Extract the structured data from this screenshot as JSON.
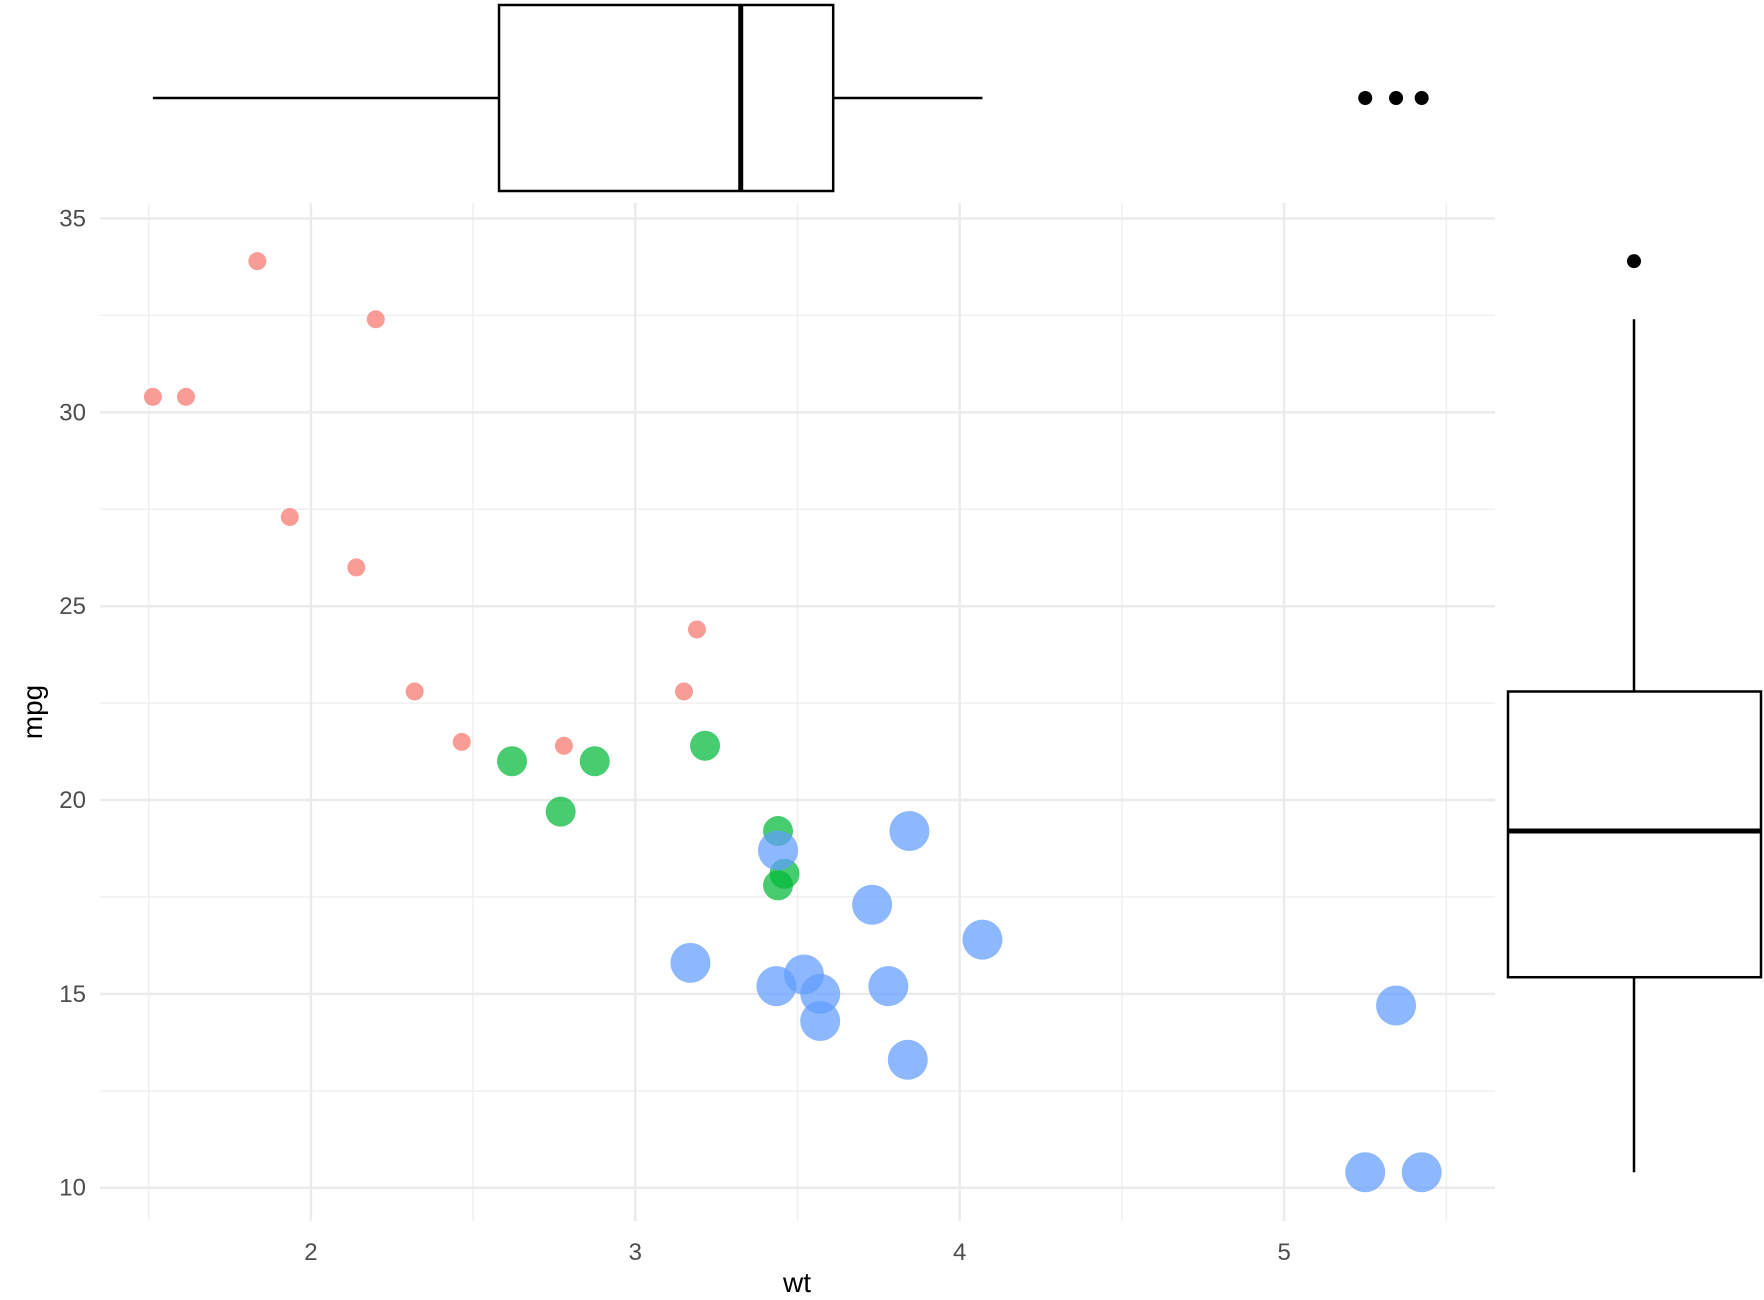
{
  "chart_data": {
    "type": "scatter",
    "title": "",
    "xlabel": "wt",
    "ylabel": "mpg",
    "xlim": [
      1.35,
      5.65
    ],
    "ylim": [
      9.4,
      35.4
    ],
    "x_ticks": [
      2,
      3,
      4,
      5
    ],
    "y_ticks": [
      10,
      15,
      20,
      25,
      30,
      35
    ],
    "grid": true,
    "legend": "none",
    "series": [
      {
        "color": "#F8766D",
        "points": [
          {
            "x": 1.513,
            "y": 30.4
          },
          {
            "x": 1.615,
            "y": 30.4
          },
          {
            "x": 1.835,
            "y": 33.9
          },
          {
            "x": 1.935,
            "y": 27.3
          },
          {
            "x": 2.14,
            "y": 26.0
          },
          {
            "x": 2.2,
            "y": 32.4
          },
          {
            "x": 2.32,
            "y": 22.8
          },
          {
            "x": 2.465,
            "y": 21.5
          },
          {
            "x": 2.78,
            "y": 21.4
          },
          {
            "x": 3.15,
            "y": 22.8
          },
          {
            "x": 3.19,
            "y": 24.4
          }
        ]
      },
      {
        "color": "#00BA38",
        "points": [
          {
            "x": 2.62,
            "y": 21.0
          },
          {
            "x": 2.77,
            "y": 19.7
          },
          {
            "x": 2.875,
            "y": 21.0
          },
          {
            "x": 3.215,
            "y": 21.4
          },
          {
            "x": 3.44,
            "y": 19.2
          },
          {
            "x": 3.44,
            "y": 17.8
          },
          {
            "x": 3.46,
            "y": 18.1
          }
        ]
      },
      {
        "color": "#619CFF",
        "points": [
          {
            "x": 3.17,
            "y": 15.8
          },
          {
            "x": 3.435,
            "y": 15.2
          },
          {
            "x": 3.44,
            "y": 18.7
          },
          {
            "x": 3.52,
            "y": 15.5
          },
          {
            "x": 3.57,
            "y": 15.0
          },
          {
            "x": 3.57,
            "y": 14.3
          },
          {
            "x": 3.73,
            "y": 17.3
          },
          {
            "x": 3.78,
            "y": 15.2
          },
          {
            "x": 3.84,
            "y": 13.3
          },
          {
            "x": 3.845,
            "y": 19.2
          },
          {
            "x": 4.07,
            "y": 16.4
          },
          {
            "x": 5.25,
            "y": 10.4
          },
          {
            "x": 5.345,
            "y": 14.7
          },
          {
            "x": 5.424,
            "y": 10.4
          }
        ]
      }
    ],
    "marginal_x_boxplot": {
      "variable": "wt",
      "whisker_low": 1.513,
      "q1": 2.58,
      "median": 3.325,
      "q3": 3.61,
      "whisker_high": 4.07,
      "outliers": [
        5.25,
        5.345,
        5.424
      ]
    },
    "marginal_y_boxplot": {
      "variable": "mpg",
      "whisker_low": 10.4,
      "q1": 15.43,
      "median": 19.2,
      "q3": 22.8,
      "whisker_high": 32.4,
      "outliers": [
        33.9
      ]
    }
  }
}
